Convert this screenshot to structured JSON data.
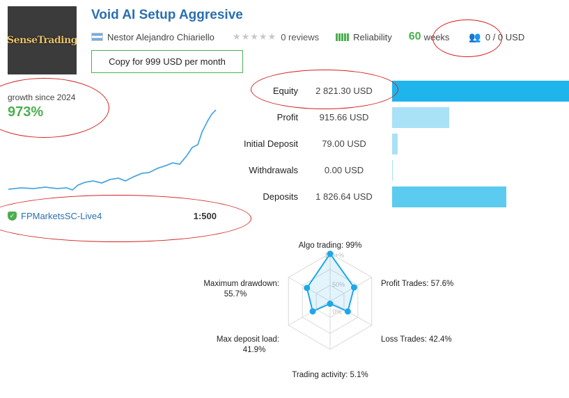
{
  "header": {
    "brand_text": "SenseTrading",
    "title": "Void AI Setup Aggresive",
    "author": "Nestor Alejandro Chiariello",
    "reviews": "0 reviews",
    "reliability_label": "Reliability",
    "weeks_value": "60",
    "weeks_label": "weeks",
    "subscribers": "0 / 0 USD",
    "copy_button": "Copy for 999 USD per month"
  },
  "growth": {
    "label": "growth since 2024",
    "value": "973%"
  },
  "broker": {
    "name": "FPMarketsSC-Live4",
    "leverage": "1:500"
  },
  "stats": [
    {
      "label": "Equity",
      "value": "2 821.30 USD",
      "amount": 2821.3,
      "color": "#1eb4ec"
    },
    {
      "label": "Profit",
      "value": "915.66 USD",
      "amount": 915.66,
      "color": "#a9e1f7"
    },
    {
      "label": "Initial Deposit",
      "value": "79.00 USD",
      "amount": 79.0,
      "color": "#a9e1f7"
    },
    {
      "label": "Withdrawals",
      "value": "0.00 USD",
      "amount": 0.0,
      "color": "#a9e1f7"
    },
    {
      "label": "Deposits",
      "value": "1 826.64 USD",
      "amount": 1826.64,
      "color": "#5ccbf0"
    }
  ],
  "radar": {
    "axes": [
      {
        "label": "Algo trading: 99%",
        "value": 99
      },
      {
        "label": "Profit Trades: 57.6%",
        "value": 57.6
      },
      {
        "label": "Loss Trades: 42.4%",
        "value": 42.4
      },
      {
        "label": "Trading activity: 5.1%",
        "value": 5.1
      },
      {
        "label_line1": "Max deposit load:",
        "label_line2": "41.9%",
        "value": 41.9
      },
      {
        "label_line1": "Maximum drawdown:",
        "label_line2": "55.7%",
        "value": 55.7
      }
    ],
    "ring_labels": [
      "100+%",
      "50%",
      "0%"
    ]
  },
  "colors": {
    "accent_blue": "#2a6fb0",
    "green": "#4caf50",
    "radar_line": "#1ea7e8",
    "annotation_red": "#d32020"
  }
}
